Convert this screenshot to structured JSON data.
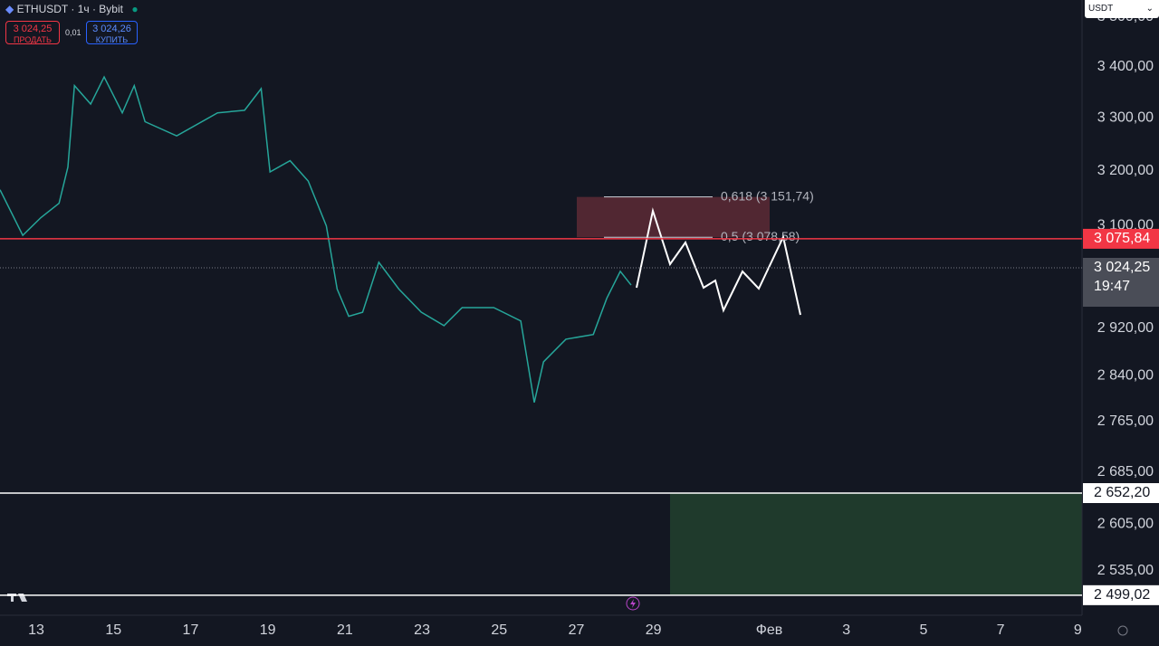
{
  "header": {
    "symbol": "ETHUSDT · 1ч · Bybit",
    "sell_price": "3 024,25",
    "sell_label": "ПРОДАТЬ",
    "spread": "0,01",
    "buy_price": "3 024,26",
    "buy_label": "КУПИТЬ",
    "currency": "USDT"
  },
  "chart_data": {
    "type": "line",
    "log_scale": true,
    "color": "#26a69a",
    "x": [
      12.06,
      12.65,
      13.12,
      13.59,
      13.82,
      13.99,
      14.41,
      14.76,
      15.23,
      15.54,
      15.82,
      16.64,
      17.7,
      18.4,
      18.83,
      19.06,
      19.58,
      20.05,
      20.52,
      20.8,
      21.1,
      21.46,
      21.88,
      22.4,
      22.98,
      23.57,
      24.04,
      24.86,
      25.56,
      25.91,
      26.15,
      26.73,
      27.44,
      27.79,
      28.14,
      28.42
    ],
    "values": [
      3165,
      3082,
      3114,
      3140,
      3207,
      3363,
      3327,
      3380,
      3310,
      3363,
      3293,
      3266,
      3310,
      3315,
      3357,
      3198,
      3219,
      3181,
      3099,
      2987,
      2940,
      2947,
      3034,
      2987,
      2947,
      2924,
      2955,
      2955,
      2932,
      2796,
      2863,
      2901,
      2909,
      2971,
      3018,
      2994
    ],
    "xlim": [
      12.06,
      40.11
    ],
    "ylim": [
      2470,
      3535
    ],
    "xticks": [
      13,
      15,
      17,
      19,
      21,
      23,
      25,
      27,
      29,
      {
        "value": 32,
        "label": "Фев"
      },
      {
        "value": 34,
        "label": "3"
      },
      {
        "value": 36,
        "label": "5"
      },
      {
        "value": 38,
        "label": "7"
      },
      {
        "value": 40,
        "label": "9"
      }
    ],
    "yticks": [
      {
        "value": 3500,
        "label": "3 500,00"
      },
      {
        "value": 3400,
        "label": "3 400,00"
      },
      {
        "value": 3300,
        "label": "3 300,00"
      },
      {
        "value": 3200,
        "label": "3 200,00"
      },
      {
        "value": 3100,
        "label": "3 100,00"
      },
      {
        "value": 2920,
        "label": "2 920,00"
      },
      {
        "value": 2840,
        "label": "2 840,00"
      },
      {
        "value": 2765,
        "label": "2 765,00"
      },
      {
        "value": 2685,
        "label": "2 685,00"
      },
      {
        "value": 2605,
        "label": "2 605,00"
      },
      {
        "value": 2535,
        "label": "2 535,00"
      }
    ],
    "fib_levels": [
      {
        "value": 3151.74,
        "label": "0,618 (3 151,74)"
      },
      {
        "value": 3078.58,
        "label": "0,5 (3 078,58)"
      }
    ],
    "levels": [
      {
        "value": 3075.84,
        "label": "3 075,84",
        "color": "#f23645"
      },
      {
        "value": 3024.25,
        "label": "3 024,25",
        "color": "#787b86"
      },
      {
        "value": 2652.2,
        "label": "2 652,20",
        "color": "#ffffff"
      },
      {
        "value": 2499.02,
        "label": "2 499,02",
        "color": "#ffffff"
      }
    ],
    "countdown": "19:47"
  }
}
